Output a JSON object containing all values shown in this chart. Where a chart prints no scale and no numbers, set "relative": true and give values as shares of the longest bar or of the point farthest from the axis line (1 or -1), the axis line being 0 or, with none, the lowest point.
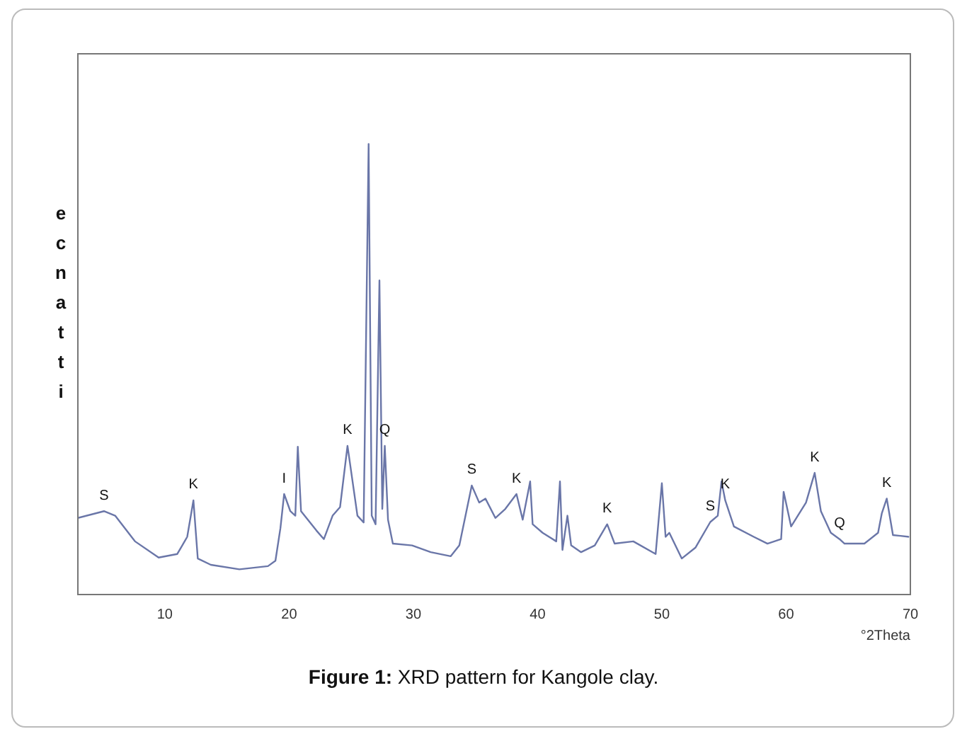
{
  "chart_data": {
    "type": "line",
    "title": "Figure 1: XRD pattern for Kangole clay.",
    "xlabel": "°2Theta",
    "ylabel": "ecnatti",
    "relative": true,
    "color": "#6a76a8",
    "grid": false,
    "legend": false,
    "marker": "none",
    "line_style": "solid",
    "xlim": [
      3,
      70
    ],
    "xticks": [
      10,
      20,
      30,
      40,
      50,
      60,
      70
    ],
    "x": [
      3.0,
      5.1,
      6.0,
      7.6,
      9.5,
      11.0,
      11.8,
      12.3,
      12.65,
      13.7,
      16.0,
      18.3,
      18.9,
      19.3,
      19.6,
      20.1,
      20.5,
      20.7,
      20.96,
      22.2,
      22.8,
      23.5,
      24.1,
      24.7,
      25.5,
      26.0,
      26.4,
      26.65,
      26.96,
      27.27,
      27.5,
      27.7,
      27.96,
      28.35,
      29.9,
      31.4,
      33.0,
      33.7,
      34.7,
      35.3,
      35.8,
      36.6,
      37.4,
      38.3,
      38.8,
      39.4,
      39.6,
      40.4,
      41.5,
      41.8,
      42.0,
      42.4,
      42.7,
      43.5,
      44.6,
      45.6,
      46.2,
      47.7,
      49.5,
      50.0,
      50.3,
      50.6,
      51.6,
      52.7,
      53.9,
      54.5,
      54.8,
      55.1,
      55.8,
      57.4,
      58.5,
      59.6,
      59.8,
      60.4,
      61.6,
      62.3,
      62.8,
      63.6,
      64.3,
      64.7,
      66.3,
      67.4,
      67.7,
      68.1,
      68.6,
      69.9
    ],
    "values": [
      0.17,
      0.185,
      0.175,
      0.118,
      0.082,
      0.09,
      0.128,
      0.209,
      0.08,
      0.066,
      0.056,
      0.063,
      0.075,
      0.147,
      0.223,
      0.185,
      0.175,
      0.328,
      0.185,
      0.142,
      0.123,
      0.175,
      0.194,
      0.33,
      0.175,
      0.16,
      1.0,
      0.175,
      0.156,
      0.697,
      0.19,
      0.33,
      0.166,
      0.113,
      0.109,
      0.094,
      0.085,
      0.109,
      0.242,
      0.204,
      0.213,
      0.17,
      0.19,
      0.223,
      0.166,
      0.251,
      0.156,
      0.137,
      0.118,
      0.251,
      0.099,
      0.175,
      0.109,
      0.094,
      0.109,
      0.156,
      0.113,
      0.118,
      0.09,
      0.247,
      0.128,
      0.137,
      0.08,
      0.104,
      0.161,
      0.175,
      0.251,
      0.209,
      0.151,
      0.128,
      0.113,
      0.123,
      0.228,
      0.151,
      0.204,
      0.27,
      0.185,
      0.137,
      0.123,
      0.113,
      0.113,
      0.137,
      0.18,
      0.213,
      0.132,
      0.128
    ],
    "annotations": [
      {
        "text": "S",
        "x": 5.1,
        "y": 0.185
      },
      {
        "text": "K",
        "x": 12.3,
        "y": 0.209
      },
      {
        "text": "I",
        "x": 19.6,
        "y": 0.223
      },
      {
        "text": "K",
        "x": 24.7,
        "y": 0.33
      },
      {
        "text": "Q",
        "x": 27.7,
        "y": 0.33
      },
      {
        "text": "S",
        "x": 34.7,
        "y": 0.242
      },
      {
        "text": "K",
        "x": 38.3,
        "y": 0.223
      },
      {
        "text": "K",
        "x": 45.6,
        "y": 0.156
      },
      {
        "text": "S",
        "x": 53.9,
        "y": 0.161
      },
      {
        "text": "K",
        "x": 55.1,
        "y": 0.209
      },
      {
        "text": "K",
        "x": 62.3,
        "y": 0.27
      },
      {
        "text": "Q",
        "x": 64.3,
        "y": 0.123
      },
      {
        "text": "K",
        "x": 68.1,
        "y": 0.213
      }
    ]
  }
}
